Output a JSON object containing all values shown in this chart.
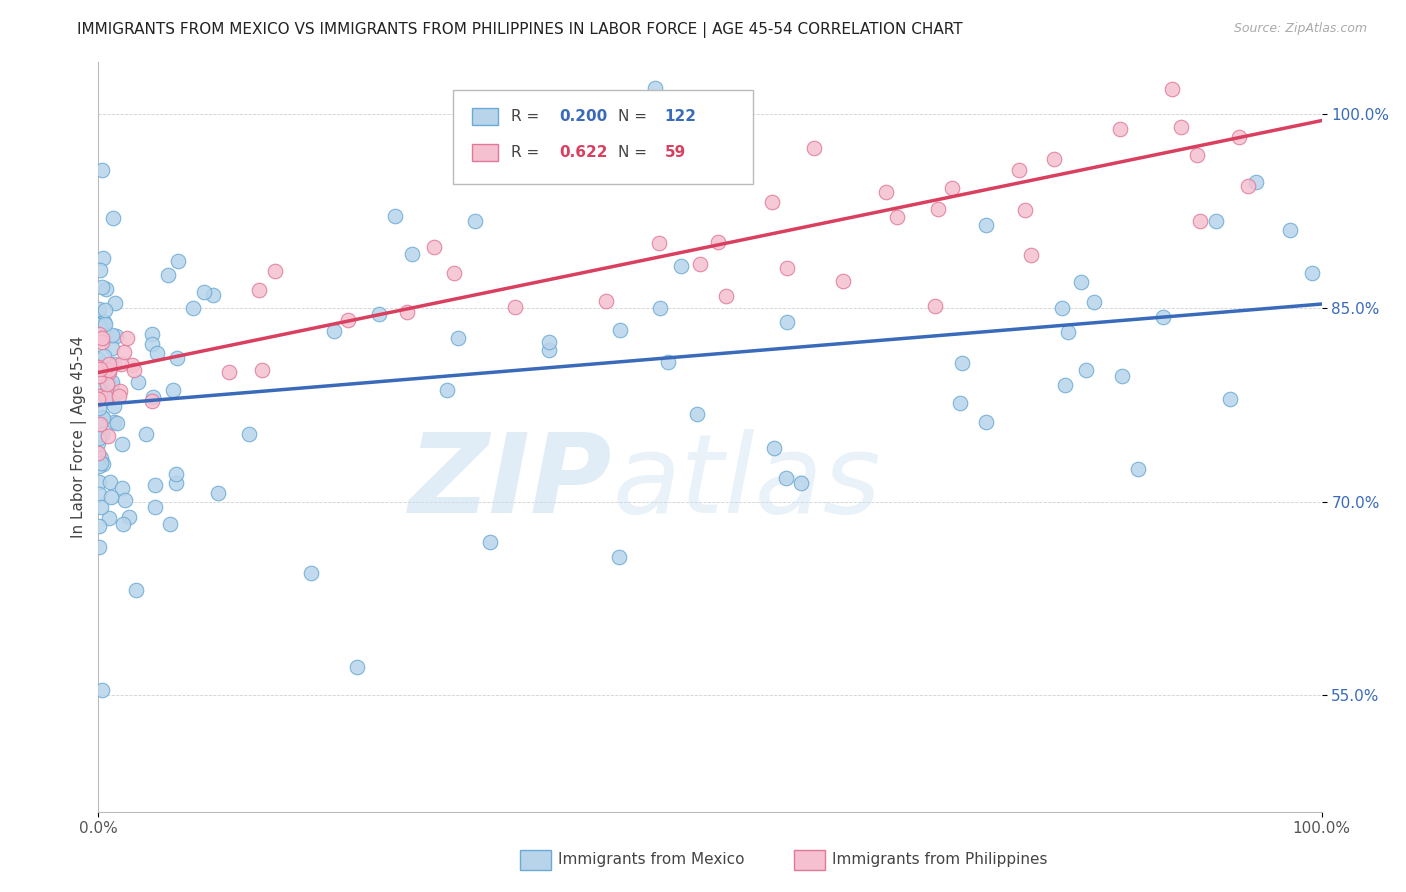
{
  "title": "IMMIGRANTS FROM MEXICO VS IMMIGRANTS FROM PHILIPPINES IN LABOR FORCE | AGE 45-54 CORRELATION CHART",
  "source": "Source: ZipAtlas.com",
  "ylabel": "In Labor Force | Age 45-54",
  "xlim": [
    0.0,
    1.0
  ],
  "ylim": [
    0.46,
    1.04
  ],
  "yticks": [
    0.55,
    0.7,
    0.85,
    1.0
  ],
  "ytick_labels": [
    "55.0%",
    "70.0%",
    "85.0%",
    "100.0%"
  ],
  "xtick_labels": [
    "0.0%",
    "100.0%"
  ],
  "xticks": [
    0.0,
    1.0
  ],
  "mexico_color": "#b8d4ea",
  "mexico_edge_color": "#6aaad4",
  "philippines_color": "#f5c0d0",
  "philippines_edge_color": "#e07898",
  "trend_mexico_color": "#3a6bba",
  "trend_philippines_color": "#d94060",
  "ytick_color": "#3a6bba",
  "xtick_color": "#555555",
  "legend_R_color_mexico": "#3a6bba",
  "legend_N_color_mexico": "#3a6bba",
  "legend_R_color_philippines": "#d94060",
  "legend_N_color_philippines": "#d94060",
  "watermark_color": "#d0e8f5",
  "trend_mexico_start_y": 0.775,
  "trend_mexico_end_y": 0.853,
  "trend_philippines_start_y": 0.8,
  "trend_philippines_end_y": 0.995,
  "title_fontsize": 11,
  "axis_label_fontsize": 11,
  "tick_fontsize": 11,
  "legend_fontsize": 11
}
